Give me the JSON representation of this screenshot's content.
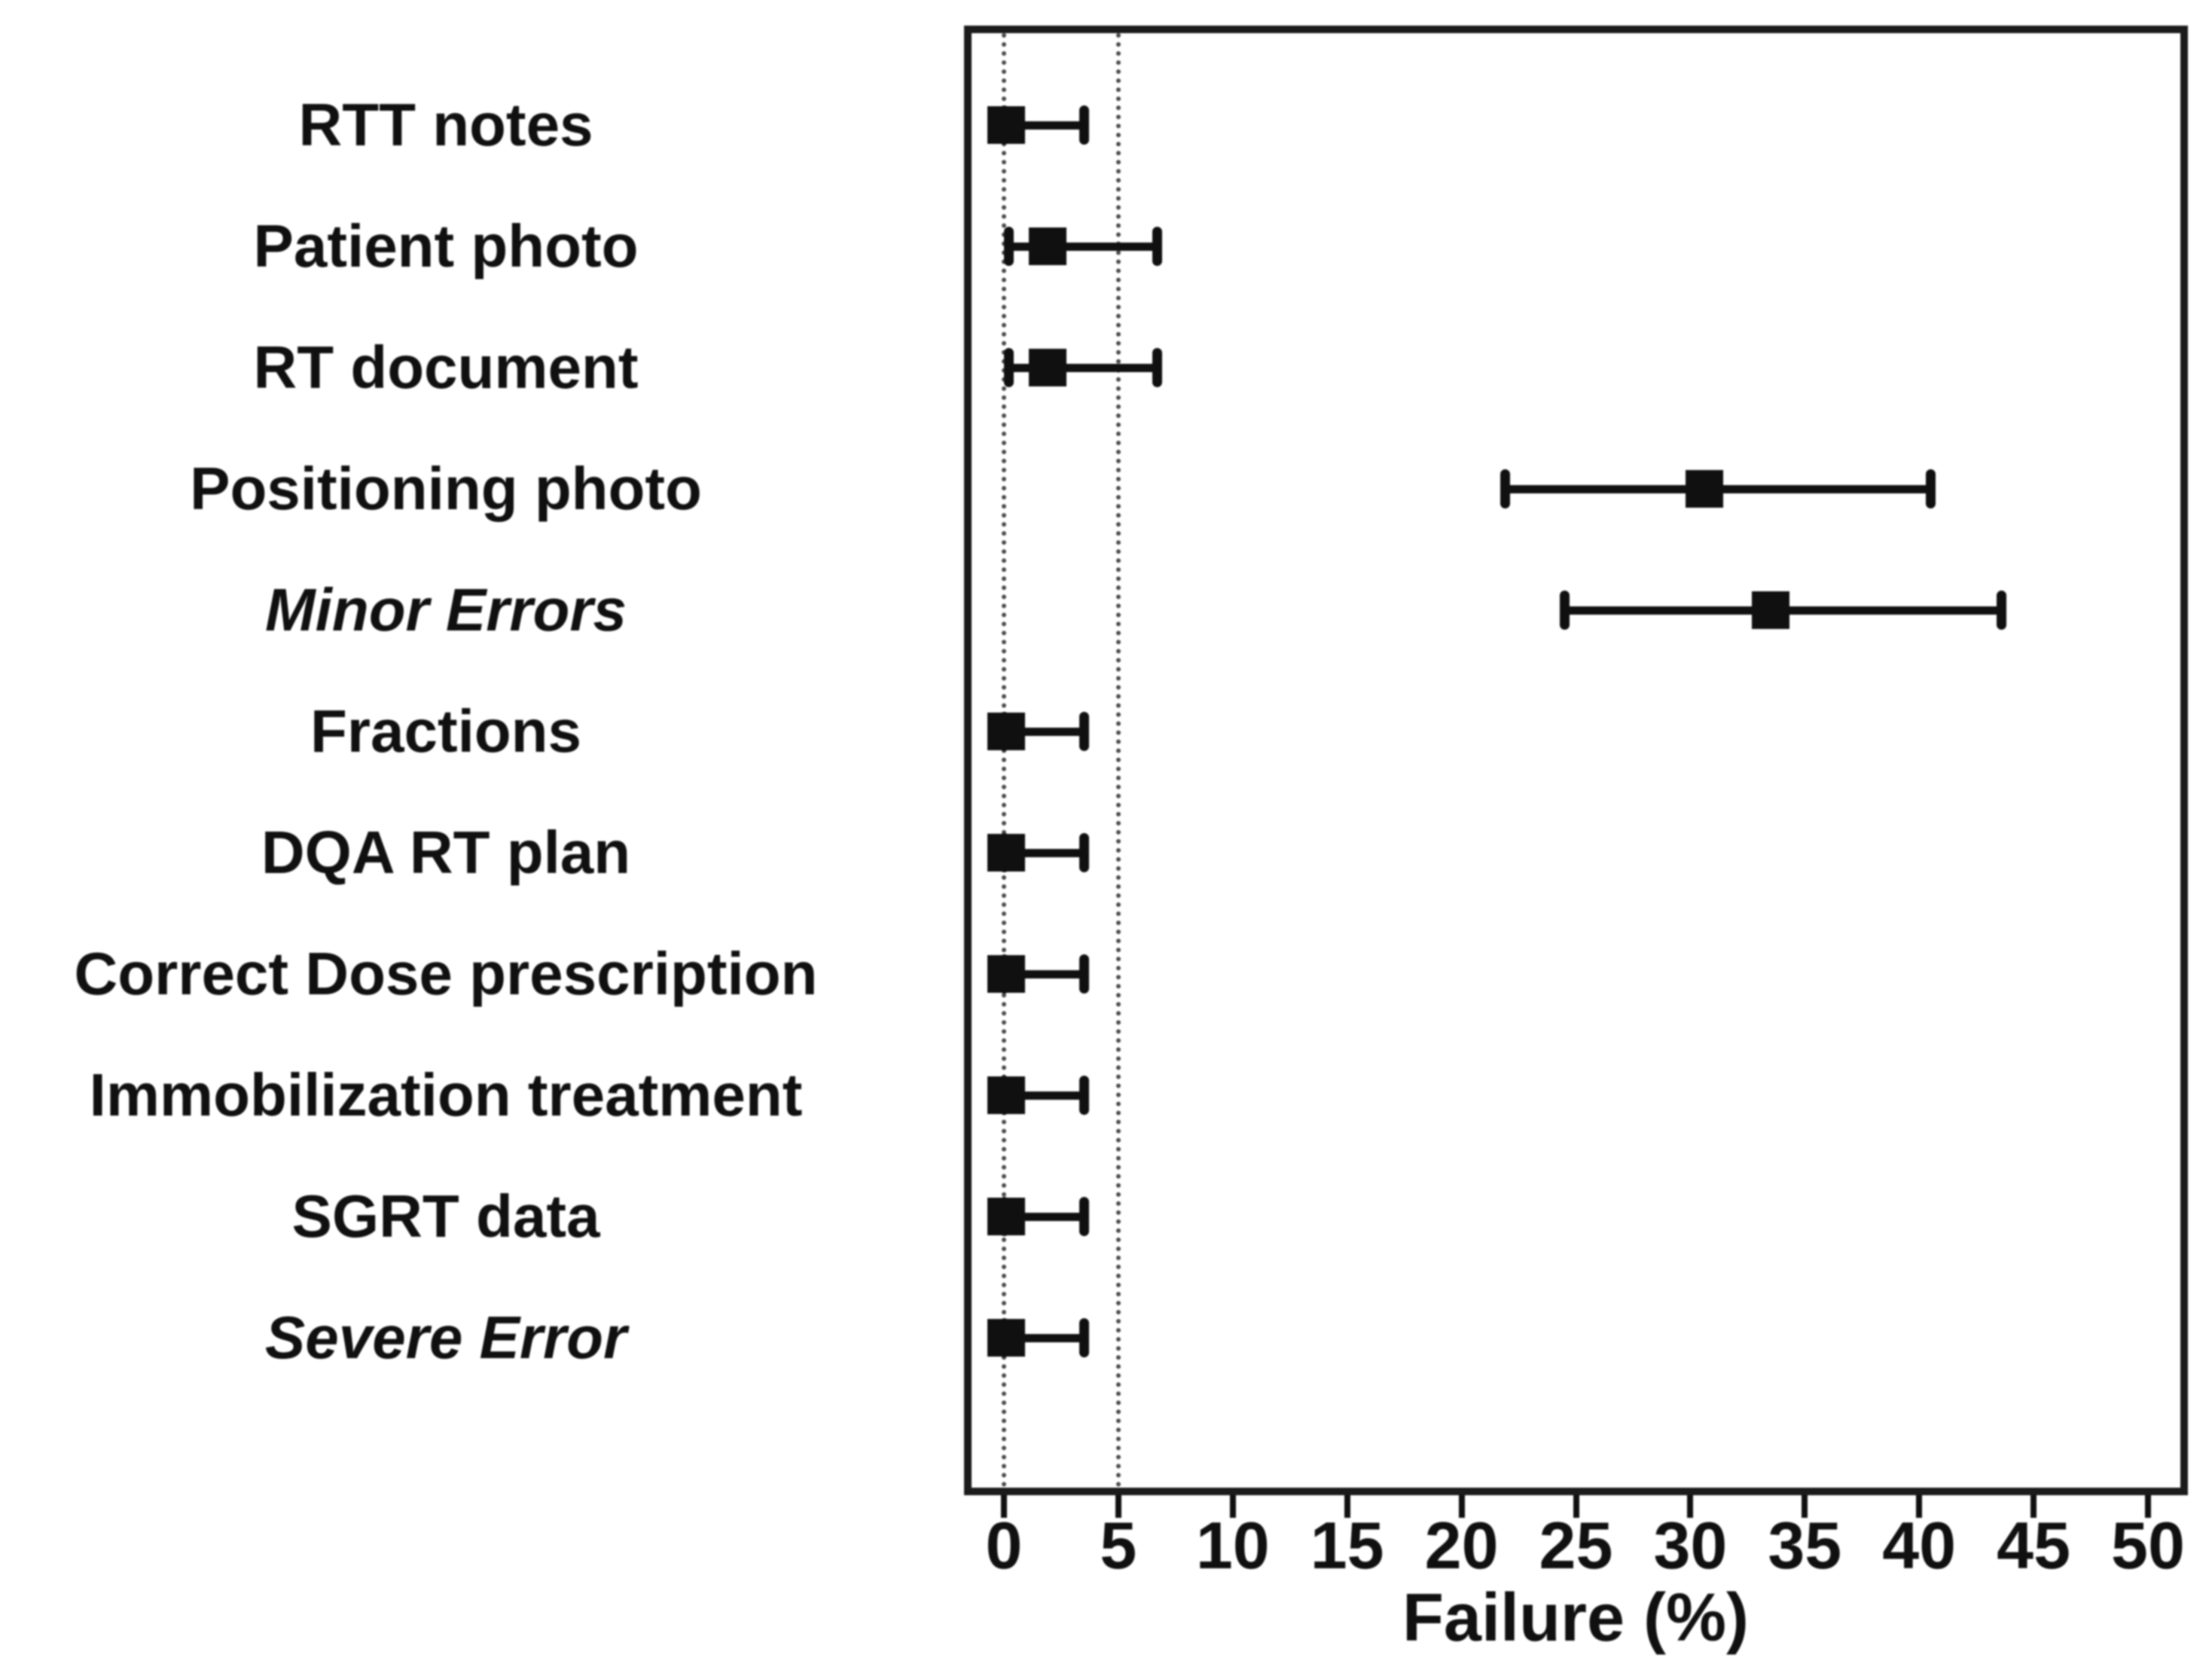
{
  "figure": {
    "background_color": "#ffffff",
    "ink_color": "#101010",
    "reference_line_color": "#4a4a4a"
  },
  "chart_data": {
    "type": "scatter",
    "subtype": "forest-plot-point-estimates-with-ci",
    "title": "",
    "xlabel": "Failure (%)",
    "ylabel": "",
    "x_axis": {
      "min": -1.7,
      "max": 51.7,
      "ticks": [
        0,
        5,
        10,
        15,
        20,
        25,
        30,
        35,
        40,
        45,
        50
      ]
    },
    "reference_lines_x": [
      0,
      5
    ],
    "grid": false,
    "legend": null,
    "marker": "filled-square-with-capped-error-bars",
    "rows": [
      {
        "label": "RTT notes",
        "style": "normal",
        "estimate": 0.1,
        "ci_low": 0.0,
        "ci_high": 3.5
      },
      {
        "label": "Patient photo",
        "style": "normal",
        "estimate": 1.9,
        "ci_low": 0.2,
        "ci_high": 6.7
      },
      {
        "label": "RT document",
        "style": "normal",
        "estimate": 1.9,
        "ci_low": 0.2,
        "ci_high": 6.7
      },
      {
        "label": "Positioning photo",
        "style": "normal",
        "estimate": 30.6,
        "ci_low": 21.9,
        "ci_high": 40.5
      },
      {
        "label": "Minor Errors",
        "style": "italic",
        "estimate": 33.5,
        "ci_low": 24.5,
        "ci_high": 43.6
      },
      {
        "label": "Fractions",
        "style": "normal",
        "estimate": 0.1,
        "ci_low": 0.0,
        "ci_high": 3.5
      },
      {
        "label": "DQA RT plan",
        "style": "normal",
        "estimate": 0.1,
        "ci_low": 0.0,
        "ci_high": 3.5
      },
      {
        "label": "Correct Dose prescription",
        "style": "normal",
        "estimate": 0.1,
        "ci_low": 0.0,
        "ci_high": 3.5
      },
      {
        "label": "Immobilization treatment",
        "style": "normal",
        "estimate": 0.1,
        "ci_low": 0.0,
        "ci_high": 3.5
      },
      {
        "label": "SGRT data",
        "style": "normal",
        "estimate": 0.1,
        "ci_low": 0.0,
        "ci_high": 3.5
      },
      {
        "label": "Severe Error",
        "style": "italic",
        "estimate": 0.1,
        "ci_low": 0.0,
        "ci_high": 3.5
      }
    ]
  }
}
